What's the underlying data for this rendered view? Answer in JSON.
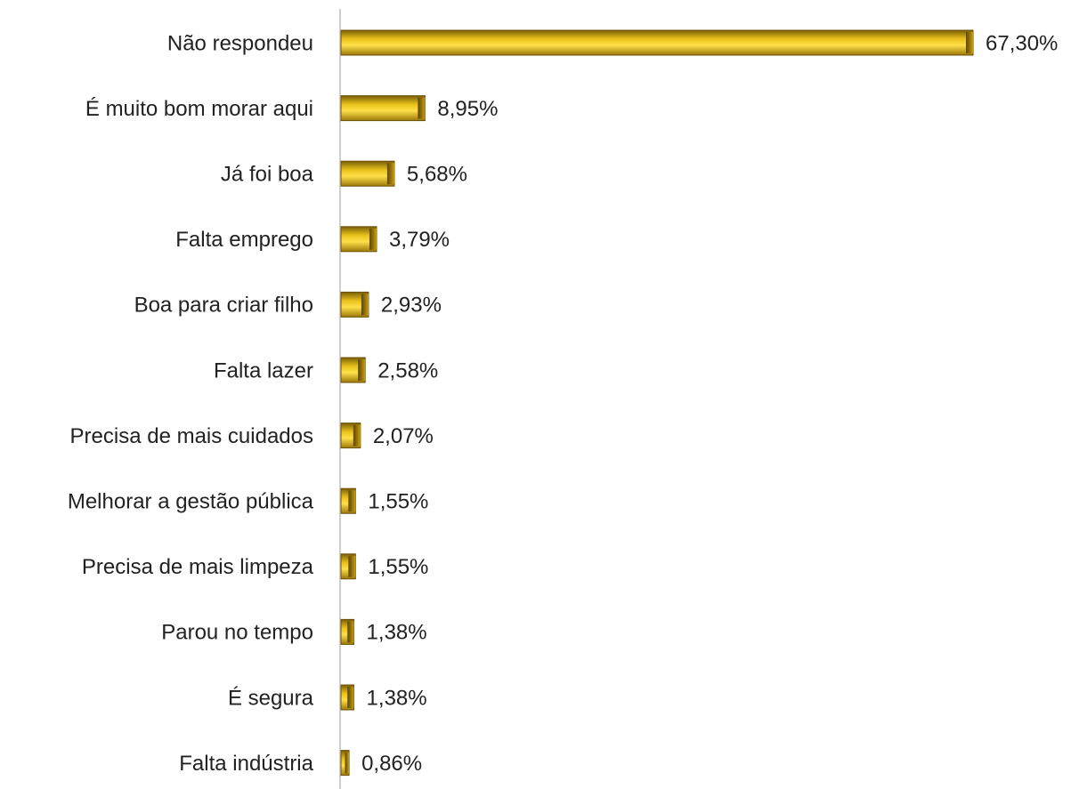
{
  "chart_data": {
    "type": "bar",
    "orientation": "horizontal",
    "color": "#d4a90c",
    "categories": [
      "Não respondeu",
      "É muito bom morar aqui",
      "Já foi boa",
      "Falta emprego",
      "Boa para criar filho",
      "Falta lazer",
      "Precisa de mais cuidados",
      "Melhorar a gestão pública",
      "Precisa de mais limpeza",
      "Parou no tempo",
      "É segura",
      "Falta indústria"
    ],
    "values": [
      67.3,
      8.95,
      5.68,
      3.79,
      2.93,
      2.58,
      2.07,
      1.55,
      1.55,
      1.38,
      1.38,
      0.86
    ],
    "value_labels": [
      "67,30%",
      "8,95%",
      "5,68%",
      "3,79%",
      "2,93%",
      "2,58%",
      "2,07%",
      "1,55%",
      "1,55%",
      "1,38%",
      "1,38%",
      "0,86%"
    ]
  }
}
